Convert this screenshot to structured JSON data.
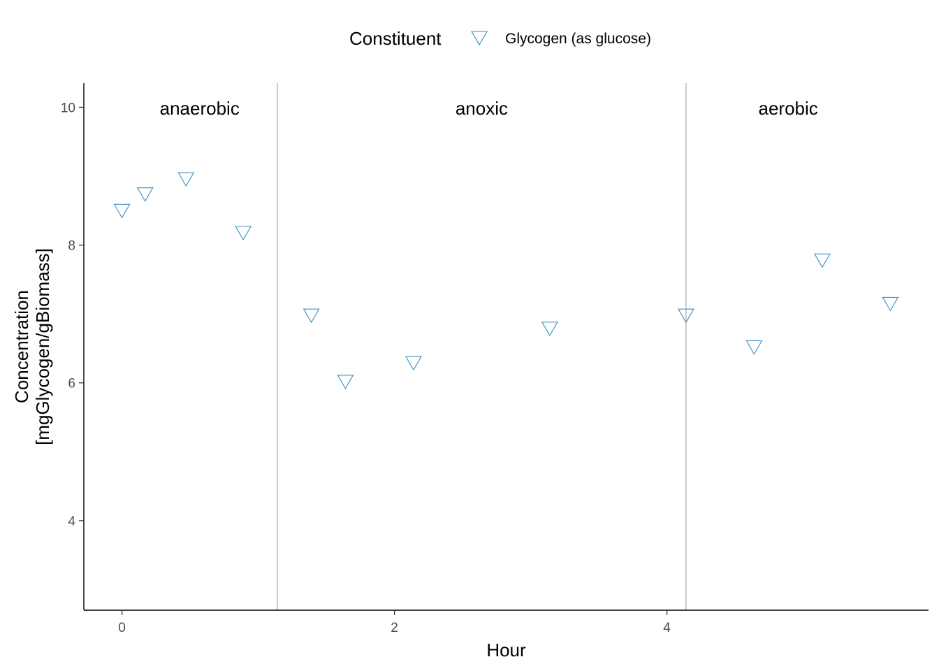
{
  "chart_data": {
    "type": "scatter",
    "title": "",
    "xlabel": "Hour",
    "ylabel_lines": [
      "Concentration",
      "[mgGlycogen/gBiomass]"
    ],
    "xlim": [
      -0.28,
      5.92
    ],
    "ylim": [
      2.7,
      10.35
    ],
    "x_ticks": [
      0,
      2,
      4
    ],
    "x_tick_labels": [
      "0",
      "2",
      "4"
    ],
    "y_ticks": [
      4,
      6,
      8,
      10
    ],
    "y_tick_labels": [
      "4",
      "6",
      "8",
      "10"
    ],
    "grid": false,
    "legend": {
      "title": "Constituent",
      "position": "top",
      "entries": [
        "Glycogen (as glucose)"
      ]
    },
    "phase_boundaries": [
      1.14,
      4.14
    ],
    "phases": [
      {
        "label": "anaerobic",
        "x": 0.57
      },
      {
        "label": "anoxic",
        "x": 2.64
      },
      {
        "label": "aerobic",
        "x": 4.89
      }
    ],
    "series": [
      {
        "name": "Glycogen (as glucose)",
        "marker": "triangle-down",
        "color": "#3a8fbf",
        "points": [
          {
            "x": 0.0,
            "y": 8.5
          },
          {
            "x": 0.17,
            "y": 8.74
          },
          {
            "x": 0.47,
            "y": 8.96
          },
          {
            "x": 0.89,
            "y": 8.18
          },
          {
            "x": 1.39,
            "y": 6.98
          },
          {
            "x": 1.64,
            "y": 6.02
          },
          {
            "x": 2.14,
            "y": 6.29
          },
          {
            "x": 3.14,
            "y": 6.79
          },
          {
            "x": 4.14,
            "y": 6.98
          },
          {
            "x": 4.64,
            "y": 6.52
          },
          {
            "x": 5.14,
            "y": 7.78
          },
          {
            "x": 5.64,
            "y": 7.15
          }
        ]
      }
    ]
  }
}
